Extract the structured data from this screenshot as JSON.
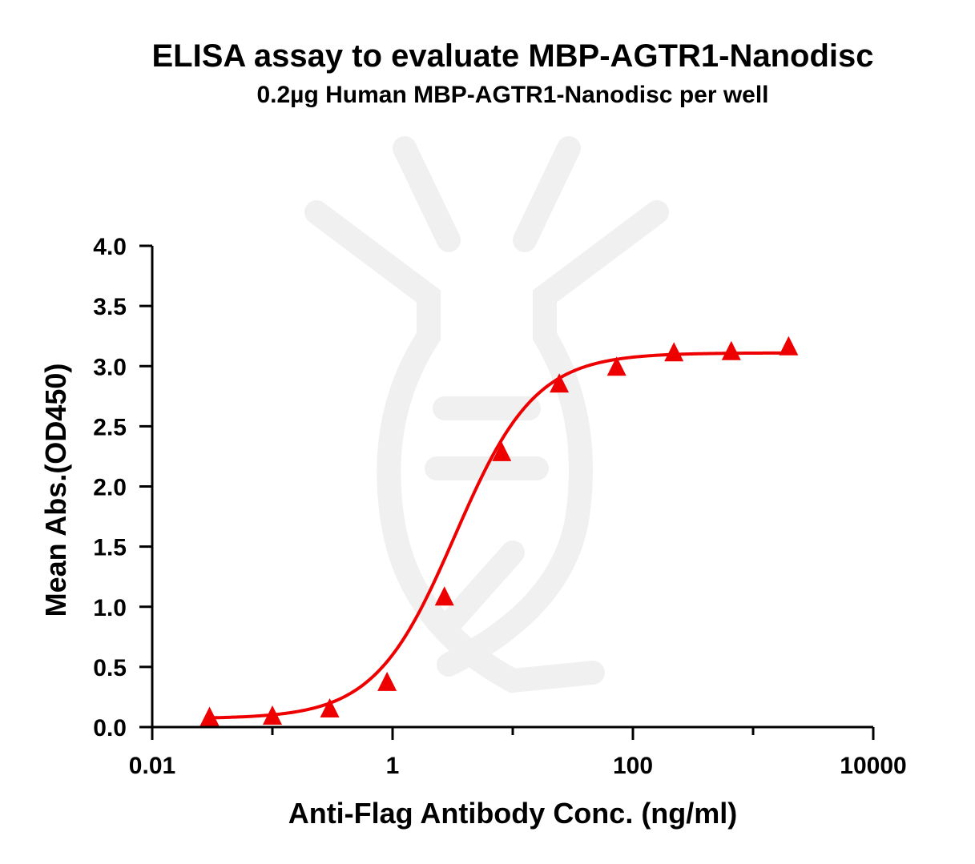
{
  "chart_data": {
    "type": "scatter",
    "title": "ELISA assay to evaluate MBP-AGTR1-Nanodisc",
    "subtitle": "0.2µg Human MBP-AGTR1-Nanodisc per well",
    "xlabel": "Anti-Flag Antibody Conc. (ng/ml)",
    "ylabel": "Mean Abs.(OD450)",
    "x_scale": "log",
    "xlim": [
      0.01,
      10000
    ],
    "ylim": [
      0,
      4.0
    ],
    "x_ticks": [
      "0.01",
      "1",
      "100",
      "10000"
    ],
    "y_ticks": [
      "0.0",
      "0.5",
      "1.0",
      "1.5",
      "2.0",
      "2.5",
      "3.0",
      "3.5",
      "4.0"
    ],
    "marker": "triangle",
    "color": "#ee0000",
    "series": [
      {
        "x": [
          0.03,
          0.1,
          0.3,
          0.9,
          2.7,
          8.1,
          24.4,
          73.2,
          219.5,
          658.4,
          1975.3
        ],
        "y": [
          0.07,
          0.08,
          0.14,
          0.36,
          1.07,
          2.27,
          2.84,
          2.98,
          3.1,
          3.11,
          3.15
        ]
      }
    ],
    "fit": {
      "model": "4PL",
      "bottom": 0.07,
      "top": 3.11,
      "ec50": 3.3,
      "hill": 1.3
    },
    "grid": false,
    "legend": "none"
  }
}
